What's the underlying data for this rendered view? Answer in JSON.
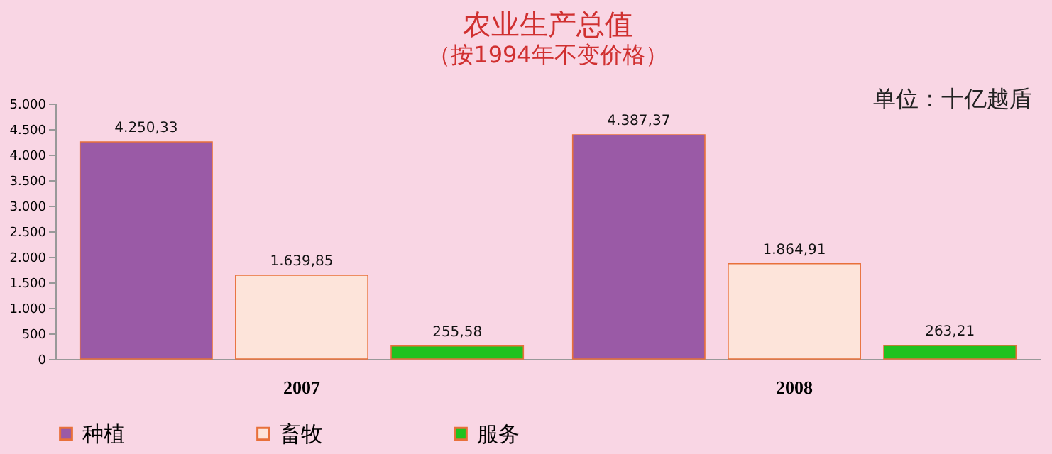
{
  "chart_data": {
    "type": "bar",
    "title": "农业生产总值",
    "subtitle": "（按1994年不变价格）",
    "annotations": [
      "单位：十亿越盾"
    ],
    "categories": [
      "2007",
      "2008"
    ],
    "series": [
      {
        "name": "种植",
        "color": "#9a5aa6",
        "values": [
          4250.33,
          4387.37
        ],
        "value_labels": [
          "4.250,33",
          "4.387,37"
        ]
      },
      {
        "name": "畜牧",
        "color": "#fde4da",
        "values": [
          1639.85,
          1864.91
        ],
        "value_labels": [
          "1.639,85",
          "1.864,91"
        ]
      },
      {
        "name": "服务",
        "color": "#1fc21f",
        "values": [
          255.58,
          263.21
        ],
        "value_labels": [
          "255,58",
          "263,21"
        ]
      }
    ],
    "ylim": [
      0,
      5000
    ],
    "yticks": [
      {
        "value": 0,
        "label": "0"
      },
      {
        "value": 500,
        "label": "500"
      },
      {
        "value": 1000,
        "label": "1.000"
      },
      {
        "value": 1500,
        "label": "1.500"
      },
      {
        "value": 2000,
        "label": "2.000"
      },
      {
        "value": 2500,
        "label": "2.500"
      },
      {
        "value": 3000,
        "label": "3.000"
      },
      {
        "value": 3500,
        "label": "3.500"
      },
      {
        "value": 4000,
        "label": "4.000"
      },
      {
        "value": 4500,
        "label": "4.500"
      },
      {
        "value": 5000,
        "label": "5.000"
      }
    ],
    "grid": false,
    "legend": "bottom"
  }
}
